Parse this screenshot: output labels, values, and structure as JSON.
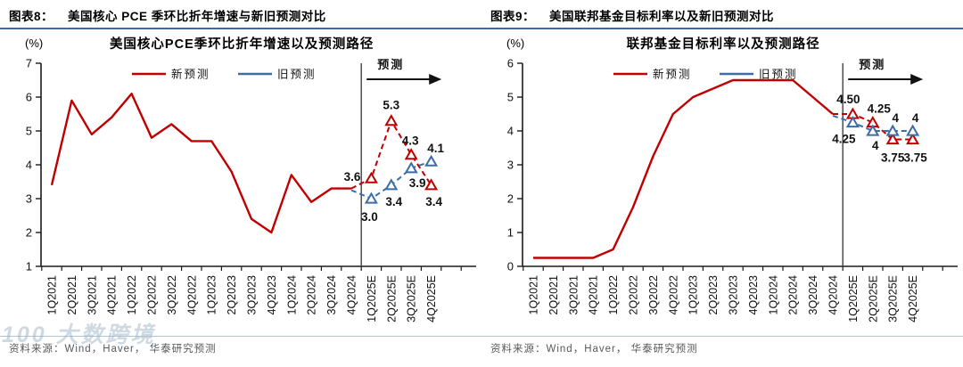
{
  "colors": {
    "new_forecast": "#c00000",
    "old_forecast": "#3b6ca8",
    "axis": "#1a1a1a",
    "separator_line": "#404040",
    "header_rule": "#3a67ad",
    "source_rule": "#aec4da",
    "source_text_color": "#595959"
  },
  "watermark": "100 大数跨境",
  "figures": [
    {
      "fig_label": "图表8：",
      "fig_title": "美国核心 PCE 季环比折年增速与新旧预测对比",
      "unit": "(%)",
      "source": "资料来源：Wind，Haver， 华泰研究预测"
    },
    {
      "fig_label": "图表9：",
      "fig_title": "美国联邦基金目标利率以及新旧预测对比",
      "unit": "(%)",
      "source": "资料来源：Wind，Haver， 华泰研究预测"
    }
  ],
  "chart_data": [
    {
      "type": "line",
      "title": "美国核心PCE季环比折年增速以及预测路径",
      "ylabel": "(%)",
      "ylim": [
        1,
        7
      ],
      "ytick_step": 1,
      "grid": false,
      "legend_position": "top-center",
      "forecast_annotation": "预测",
      "forecast_start_index": 16,
      "categories": [
        "1Q2021",
        "2Q2021",
        "3Q2021",
        "4Q2021",
        "1Q2022",
        "2Q2022",
        "3Q2022",
        "4Q2022",
        "1Q2023",
        "2Q2023",
        "3Q2023",
        "4Q2023",
        "1Q2024",
        "2Q2024",
        "3Q2024",
        "4Q2024",
        "1Q2025E",
        "2Q2025E",
        "3Q2025E",
        "4Q2025E"
      ],
      "series": [
        {
          "name": "新预测",
          "color": "#c00000",
          "dash_from_index": 15,
          "marker_from_index": 16,
          "values": [
            3.4,
            5.9,
            4.9,
            5.4,
            6.1,
            4.8,
            5.2,
            4.7,
            4.7,
            3.8,
            2.4,
            2.0,
            3.7,
            2.9,
            3.3,
            3.3,
            3.6,
            5.3,
            4.3,
            3.4
          ],
          "labels": [
            {
              "index": 16,
              "text": "3.6",
              "dx": -12,
              "dy": 3,
              "anchor": "end"
            },
            {
              "index": 17,
              "text": "5.3",
              "dx": 0,
              "dy": -13,
              "anchor": "middle"
            },
            {
              "index": 18,
              "text": "4.3",
              "dx": -1,
              "dy": -11,
              "anchor": "middle"
            },
            {
              "index": 19,
              "text": "3.4",
              "dx": 3,
              "dy": 23,
              "anchor": "middle"
            }
          ]
        },
        {
          "name": "旧预测",
          "color": "#3b6ca8",
          "dash_from_index": 15,
          "marker_from_index": 16,
          "values": [
            null,
            null,
            null,
            null,
            null,
            null,
            null,
            null,
            null,
            null,
            null,
            null,
            null,
            null,
            null,
            3.25,
            3.0,
            3.4,
            3.9,
            4.1
          ],
          "labels": [
            {
              "index": 16,
              "text": "3.0",
              "dx": -2,
              "dy": 25,
              "anchor": "middle"
            },
            {
              "index": 17,
              "text": "3.4",
              "dx": 3,
              "dy": 23,
              "anchor": "middle"
            },
            {
              "index": 18,
              "text": "3.9",
              "dx": 7,
              "dy": 21,
              "anchor": "middle"
            },
            {
              "index": 19,
              "text": "4.1",
              "dx": 5,
              "dy": -10,
              "anchor": "middle"
            }
          ]
        }
      ]
    },
    {
      "type": "line",
      "title": "联邦基金目标利率以及预测路径",
      "ylabel": "(%)",
      "ylim": [
        0,
        6
      ],
      "ytick_step": 1,
      "grid": false,
      "legend_position": "top-center",
      "forecast_annotation": "预测",
      "forecast_start_index": 16,
      "categories": [
        "1Q2021",
        "2Q2021",
        "3Q2021",
        "4Q2021",
        "1Q2022",
        "2Q2022",
        "3Q2022",
        "4Q2022",
        "1Q2023",
        "2Q2023",
        "3Q2023",
        "4Q2023",
        "1Q2024",
        "2Q2024",
        "3Q2024",
        "4Q2024",
        "1Q2025E",
        "2Q2025E",
        "3Q2025E",
        "4Q2025E"
      ],
      "series": [
        {
          "name": "新预测",
          "color": "#c00000",
          "dash_from_index": 15,
          "marker_from_index": 16,
          "values": [
            0.25,
            0.25,
            0.25,
            0.25,
            0.5,
            1.75,
            3.25,
            4.5,
            5.0,
            5.25,
            5.5,
            5.5,
            5.5,
            5.5,
            5.0,
            4.5,
            4.5,
            4.25,
            3.75,
            3.75
          ],
          "labels": [
            {
              "index": 16,
              "text": "4.50",
              "dx": -5,
              "dy": -12,
              "anchor": "middle"
            },
            {
              "index": 17,
              "text": "4.25",
              "dx": 7,
              "dy": -11,
              "anchor": "middle"
            },
            {
              "index": 18,
              "text": "3.75",
              "dx": 0,
              "dy": 25,
              "anchor": "middle"
            },
            {
              "index": 19,
              "text": "3.75",
              "dx": 3,
              "dy": 25,
              "anchor": "middle"
            }
          ]
        },
        {
          "name": "旧预测",
          "color": "#3b6ca8",
          "dash_from_index": 15,
          "marker_from_index": 16,
          "values": [
            null,
            null,
            null,
            null,
            null,
            null,
            null,
            null,
            null,
            null,
            null,
            null,
            null,
            null,
            null,
            4.45,
            4.25,
            4.0,
            4.0,
            4.0
          ],
          "labels": [
            {
              "index": 16,
              "text": "4.25",
              "dx": -10,
              "dy": 23,
              "anchor": "middle"
            },
            {
              "index": 17,
              "text": "4",
              "dx": 3,
              "dy": 21,
              "anchor": "middle"
            },
            {
              "index": 18,
              "text": "4",
              "dx": 3,
              "dy": -10,
              "anchor": "middle"
            },
            {
              "index": 19,
              "text": "4",
              "dx": 3,
              "dy": -10,
              "anchor": "middle"
            }
          ]
        }
      ]
    }
  ]
}
